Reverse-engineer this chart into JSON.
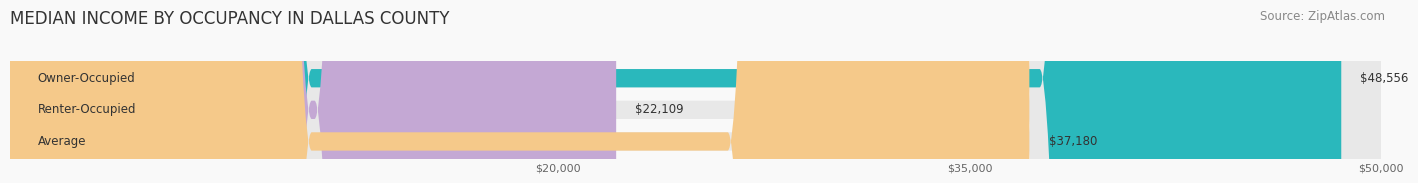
{
  "title": "MEDIAN INCOME BY OCCUPANCY IN DALLAS COUNTY",
  "source": "Source: ZipAtlas.com",
  "categories": [
    "Owner-Occupied",
    "Renter-Occupied",
    "Average"
  ],
  "values": [
    48556,
    22109,
    37180
  ],
  "bar_colors": [
    "#2ab8bc",
    "#c4a8d4",
    "#f5c98a"
  ],
  "track_color": "#e8e8e8",
  "value_labels": [
    "$48,556",
    "$22,109",
    "$37,180"
  ],
  "xmin": 0,
  "xmax": 50000,
  "xticks": [
    20000,
    35000,
    50000
  ],
  "xtick_labels": [
    "$20,000",
    "$35,000",
    "$50,000"
  ],
  "title_fontsize": 12,
  "source_fontsize": 8.5,
  "bar_label_fontsize": 8.5,
  "value_label_fontsize": 8.5,
  "background_color": "#f9f9f9",
  "bar_height": 0.58
}
